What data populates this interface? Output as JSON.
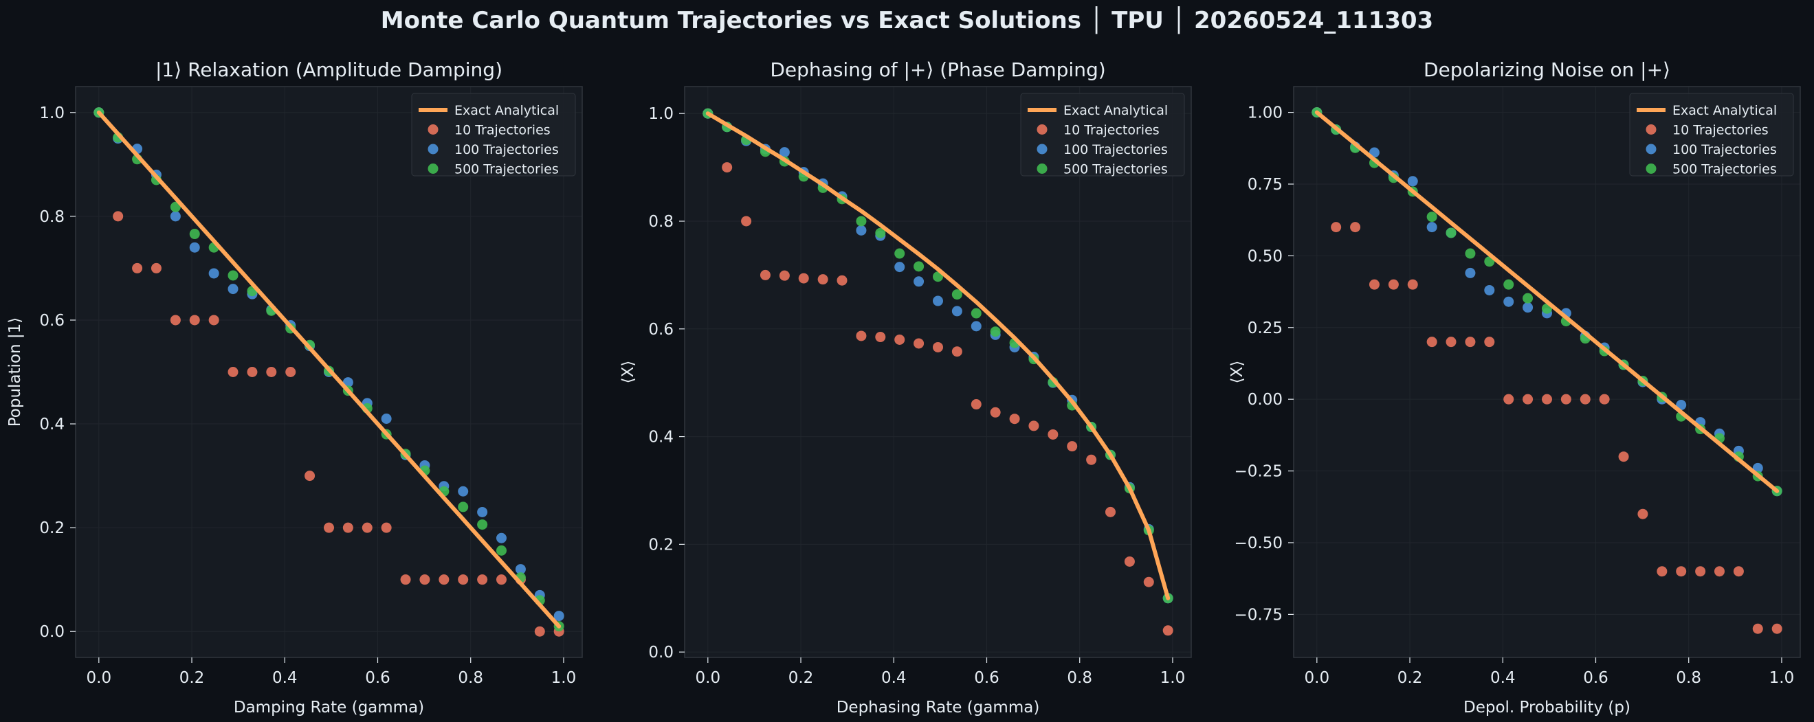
{
  "figure": {
    "suptitle": "Monte Carlo Quantum Trajectories vs Exact Solutions │ TPU │ 20260524_111303",
    "colors": {
      "background": "#0d1117",
      "axes_bg": "#161b22",
      "spine": "#30363d",
      "grid": "#21262d",
      "text": "#e6edf3",
      "analytical": "#ffa657",
      "traj10": "#e8735c",
      "traj100": "#4a90d9",
      "traj500": "#3fb950"
    }
  },
  "chart_data": [
    {
      "type": "scatter",
      "title": "|1⟩ Relaxation (Amplitude Damping)",
      "xlabel": "Damping Rate (gamma)",
      "ylabel": "Population |1⟩",
      "xlim": [
        -0.05,
        1.04
      ],
      "ylim": [
        -0.05,
        1.05
      ],
      "xticks": [
        0.0,
        0.2,
        0.4,
        0.6,
        0.8,
        1.0
      ],
      "xtick_labels": [
        "0.0",
        "0.2",
        "0.4",
        "0.6",
        "0.8",
        "1.0"
      ],
      "yticks": [
        0.0,
        0.2,
        0.4,
        0.6,
        0.8,
        1.0
      ],
      "ytick_labels": [
        "0.0",
        "0.2",
        "0.4",
        "0.6",
        "0.8",
        "1.0"
      ],
      "grid": true,
      "legend_position": "top-right",
      "x": [
        0.0,
        0.0412,
        0.0825,
        0.1237,
        0.165,
        0.2062,
        0.2475,
        0.2887,
        0.33,
        0.3712,
        0.4125,
        0.4537,
        0.495,
        0.5362,
        0.5775,
        0.6187,
        0.66,
        0.7012,
        0.7425,
        0.7837,
        0.825,
        0.8662,
        0.9075,
        0.9487,
        0.99
      ],
      "analytical": {
        "name": "Exact Analytical",
        "values": [
          1.0,
          0.9588,
          0.9175,
          0.8763,
          0.835,
          0.7938,
          0.7525,
          0.7113,
          0.67,
          0.6288,
          0.5875,
          0.5463,
          0.505,
          0.4638,
          0.4225,
          0.3813,
          0.34,
          0.2988,
          0.2575,
          0.2163,
          0.175,
          0.1338,
          0.0925,
          0.0513,
          0.01
        ]
      },
      "series": [
        {
          "name": "10 Trajectories",
          "values": [
            1.0,
            0.8,
            0.7,
            0.7,
            0.6,
            0.6,
            0.6,
            0.5,
            0.5,
            0.5,
            0.5,
            0.3,
            0.2,
            0.2,
            0.2,
            0.2,
            0.1,
            0.1,
            0.1,
            0.1,
            0.1,
            0.1,
            0.1,
            0.0,
            0.0
          ]
        },
        {
          "name": "100 Trajectories",
          "values": [
            1.0,
            0.95,
            0.93,
            0.88,
            0.8,
            0.74,
            0.69,
            0.66,
            0.65,
            0.62,
            0.59,
            0.55,
            0.5,
            0.48,
            0.44,
            0.41,
            0.34,
            0.32,
            0.28,
            0.27,
            0.23,
            0.18,
            0.12,
            0.07,
            0.03
          ]
        },
        {
          "name": "500 Trajectories",
          "values": [
            1.0,
            0.952,
            0.91,
            0.87,
            0.818,
            0.766,
            0.74,
            0.686,
            0.656,
            0.618,
            0.584,
            0.552,
            0.502,
            0.464,
            0.43,
            0.38,
            0.342,
            0.31,
            0.27,
            0.24,
            0.206,
            0.156,
            0.104,
            0.06,
            0.01
          ]
        }
      ]
    },
    {
      "type": "scatter",
      "title": "Dephasing of |+⟩ (Phase Damping)",
      "xlabel": "Dephasing Rate (gamma)",
      "ylabel": "⟨X⟩",
      "xlim": [
        -0.05,
        1.04
      ],
      "ylim": [
        -0.01,
        1.05
      ],
      "xticks": [
        0.0,
        0.2,
        0.4,
        0.6,
        0.8,
        1.0
      ],
      "xtick_labels": [
        "0.0",
        "0.2",
        "0.4",
        "0.6",
        "0.8",
        "1.0"
      ],
      "yticks": [
        0.0,
        0.2,
        0.4,
        0.6,
        0.8,
        1.0
      ],
      "ytick_labels": [
        "0.0",
        "0.2",
        "0.4",
        "0.6",
        "0.8",
        "1.0"
      ],
      "grid": true,
      "legend_position": "top-right",
      "x": [
        0.0,
        0.0412,
        0.0825,
        0.1237,
        0.165,
        0.2062,
        0.2475,
        0.2887,
        0.33,
        0.3712,
        0.4125,
        0.4537,
        0.495,
        0.5362,
        0.5775,
        0.6187,
        0.66,
        0.7012,
        0.7425,
        0.7837,
        0.825,
        0.8662,
        0.9075,
        0.9487,
        0.99
      ],
      "analytical": {
        "name": "Exact Analytical",
        "values": [
          1.0,
          0.979,
          0.958,
          0.936,
          0.914,
          0.891,
          0.868,
          0.843,
          0.819,
          0.793,
          0.766,
          0.739,
          0.711,
          0.681,
          0.65,
          0.617,
          0.583,
          0.547,
          0.507,
          0.465,
          0.418,
          0.366,
          0.304,
          0.226,
          0.1
        ]
      },
      "series": [
        {
          "name": "10 Trajectories",
          "values": [
            1.0,
            0.9,
            0.8,
            0.7,
            0.699,
            0.694,
            0.692,
            0.69,
            0.587,
            0.585,
            0.58,
            0.573,
            0.566,
            0.558,
            0.46,
            0.445,
            0.433,
            0.42,
            0.404,
            0.382,
            0.357,
            0.26,
            0.168,
            0.13,
            0.04
          ]
        },
        {
          "name": "100 Trajectories",
          "values": [
            1.0,
            0.975,
            0.949,
            0.934,
            0.928,
            0.891,
            0.87,
            0.846,
            0.783,
            0.773,
            0.715,
            0.688,
            0.652,
            0.633,
            0.605,
            0.589,
            0.566,
            0.548,
            0.5,
            0.468,
            0.418,
            0.366,
            0.306,
            0.228,
            0.1
          ]
        },
        {
          "name": "500 Trajectories",
          "values": [
            1.0,
            0.975,
            0.951,
            0.929,
            0.911,
            0.883,
            0.862,
            0.841,
            0.8,
            0.778,
            0.74,
            0.716,
            0.697,
            0.664,
            0.629,
            0.595,
            0.574,
            0.544,
            0.501,
            0.458,
            0.418,
            0.366,
            0.304,
            0.226,
            0.1
          ]
        }
      ]
    },
    {
      "type": "scatter",
      "title": "Depolarizing Noise on |+⟩",
      "xlabel": "Depol. Probability (p)",
      "ylabel": "⟨X⟩",
      "xlim": [
        -0.05,
        1.04
      ],
      "ylim": [
        -0.9,
        1.09
      ],
      "xticks": [
        0.0,
        0.2,
        0.4,
        0.6,
        0.8,
        1.0
      ],
      "xtick_labels": [
        "0.0",
        "0.2",
        "0.4",
        "0.6",
        "0.8",
        "1.0"
      ],
      "yticks": [
        -0.75,
        -0.5,
        -0.25,
        0.0,
        0.25,
        0.5,
        0.75,
        1.0
      ],
      "ytick_labels": [
        "−0.75",
        "−0.50",
        "−0.25",
        "0.00",
        "0.25",
        "0.50",
        "0.75",
        "1.00"
      ],
      "grid": true,
      "legend_position": "top-right",
      "x": [
        0.0,
        0.0412,
        0.0825,
        0.1237,
        0.165,
        0.2062,
        0.2475,
        0.2887,
        0.33,
        0.3712,
        0.4125,
        0.4537,
        0.495,
        0.5362,
        0.5775,
        0.6187,
        0.66,
        0.7012,
        0.7425,
        0.7837,
        0.825,
        0.8662,
        0.9075,
        0.9487,
        0.99
      ],
      "analytical": {
        "name": "Exact Analytical",
        "values": [
          1.0,
          0.945,
          0.89,
          0.835,
          0.78,
          0.725,
          0.67,
          0.615,
          0.56,
          0.505,
          0.45,
          0.395,
          0.34,
          0.285,
          0.23,
          0.175,
          0.12,
          0.065,
          0.01,
          -0.045,
          -0.1,
          -0.155,
          -0.21,
          -0.265,
          -0.32
        ]
      },
      "series": [
        {
          "name": "10 Trajectories",
          "values": [
            1.0,
            0.6,
            0.6,
            0.4,
            0.4,
            0.4,
            0.2,
            0.2,
            0.2,
            0.2,
            0.0,
            0.0,
            0.0,
            0.0,
            0.0,
            0.0,
            -0.2,
            -0.4,
            -0.6,
            -0.6,
            -0.6,
            -0.6,
            -0.6,
            -0.8,
            -0.8
          ]
        },
        {
          "name": "100 Trajectories",
          "values": [
            1.0,
            0.94,
            0.88,
            0.86,
            0.78,
            0.76,
            0.6,
            0.58,
            0.44,
            0.38,
            0.34,
            0.32,
            0.3,
            0.3,
            0.22,
            0.18,
            0.12,
            0.06,
            0.0,
            -0.02,
            -0.08,
            -0.12,
            -0.18,
            -0.24,
            -0.32
          ]
        },
        {
          "name": "500 Trajectories",
          "values": [
            1.0,
            0.94,
            0.876,
            0.824,
            0.772,
            0.724,
            0.636,
            0.58,
            0.508,
            0.48,
            0.4,
            0.352,
            0.316,
            0.272,
            0.212,
            0.168,
            0.12,
            0.064,
            0.008,
            -0.06,
            -0.104,
            -0.136,
            -0.2,
            -0.268,
            -0.32
          ]
        }
      ]
    }
  ]
}
